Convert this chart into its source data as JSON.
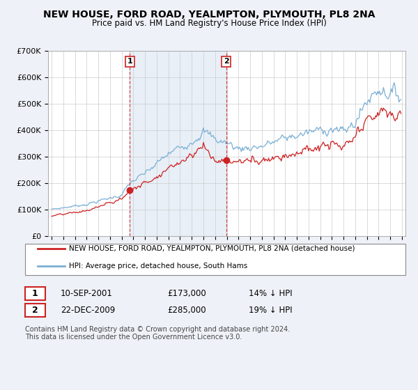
{
  "title": "NEW HOUSE, FORD ROAD, YEALMPTON, PLYMOUTH, PL8 2NA",
  "subtitle": "Price paid vs. HM Land Registry's House Price Index (HPI)",
  "title_fontsize": 10,
  "subtitle_fontsize": 8.5,
  "background_color": "#eef2f8",
  "plot_bg_color": "#ffffff",
  "hpi_color": "#7bafd4",
  "price_color": "#cc2222",
  "purchase1_year": 2001.7,
  "purchase1_price": 173000,
  "purchase2_year": 2009.95,
  "purchase2_price": 285000,
  "legend_entry1": "NEW HOUSE, FORD ROAD, YEALMPTON, PLYMOUTH, PL8 2NA (detached house)",
  "legend_entry2": "HPI: Average price, detached house, South Hams",
  "table_row1": [
    "1",
    "10-SEP-2001",
    "£173,000",
    "14% ↓ HPI"
  ],
  "table_row2": [
    "2",
    "22-DEC-2009",
    "£285,000",
    "19% ↓ HPI"
  ],
  "footer": "Contains HM Land Registry data © Crown copyright and database right 2024.\nThis data is licensed under the Open Government Licence v3.0.",
  "ylim": [
    0,
    700000
  ],
  "yticks": [
    0,
    100000,
    200000,
    300000,
    400000,
    500000,
    600000,
    700000
  ],
  "ytick_labels": [
    "£0",
    "£100K",
    "£200K",
    "£300K",
    "£400K",
    "£500K",
    "£600K",
    "£700K"
  ],
  "xmin": 1995,
  "xmax": 2025,
  "span_color": "#ccdcee",
  "span_alpha": 0.45
}
